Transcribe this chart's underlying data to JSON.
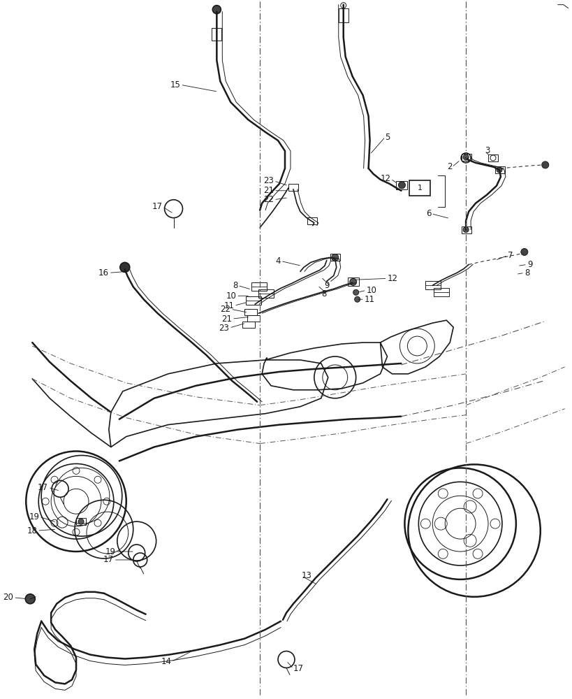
{
  "bg_color": "#ffffff",
  "line_color": "#1a1a1a",
  "fig_width": 8.2,
  "fig_height": 10.0,
  "dpi": 100
}
